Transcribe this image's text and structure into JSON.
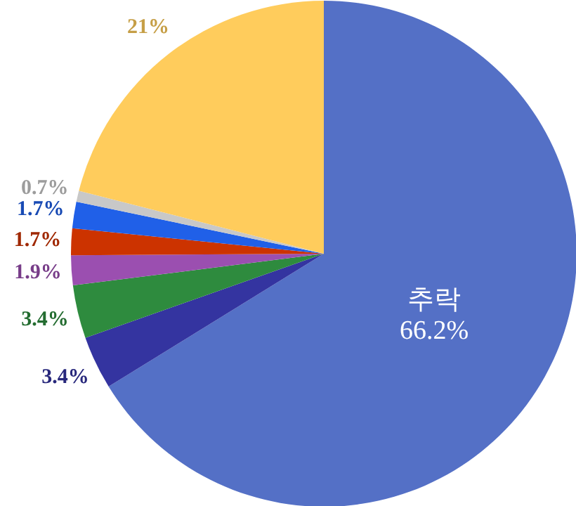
{
  "chart_data": {
    "type": "pie",
    "categories": [
      "추락",
      null,
      null,
      null,
      null,
      null,
      null,
      null
    ],
    "values": [
      66.2,
      3.4,
      3.4,
      1.9,
      1.7,
      1.7,
      0.7,
      21
    ],
    "value_labels": [
      "66.2%",
      "3.4%",
      "3.4%",
      "1.9%",
      "1.7%",
      "1.7%",
      "0.7%",
      "21%"
    ],
    "colors": [
      "#5470c6",
      "#3434a0",
      "#2e8b3e",
      "#9b4fb0",
      "#cc3300",
      "#2060e8",
      "#c8c8c8",
      "#ffcc5c"
    ]
  }
}
